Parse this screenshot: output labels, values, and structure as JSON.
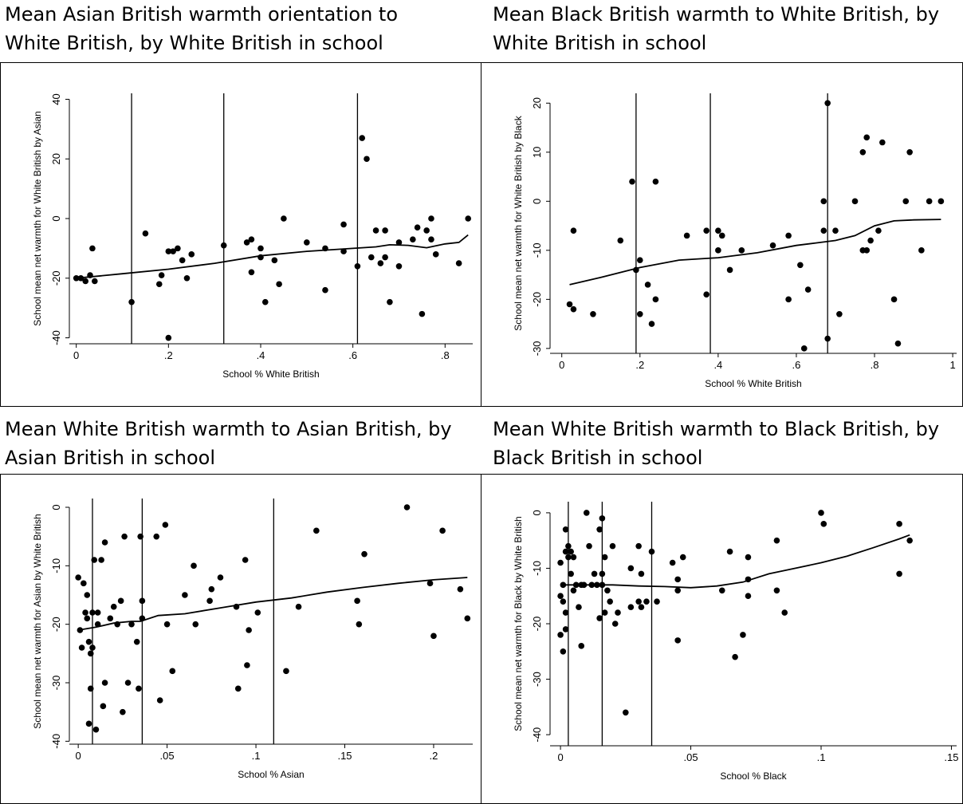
{
  "panels": [
    {
      "heading_line1": "Mean Asian British warmth orientation to",
      "heading_line2": "White British, by White British in school"
    },
    {
      "heading_line1": "Mean Black British warmth to White British, by",
      "heading_line2": "White British in school"
    },
    {
      "heading_line1": "Mean White British warmth to Asian British, by",
      "heading_line2": "Asian British in school"
    },
    {
      "heading_line1": "Mean White British warmth to Black British, by",
      "heading_line2": "Black British in school"
    }
  ],
  "chart_data": [
    {
      "type": "scatter",
      "title": "",
      "xlabel": "School % White British",
      "ylabel": "School mean net warmth for White British by Asian",
      "xlim": [
        -0.015,
        0.86
      ],
      "ylim": [
        -42,
        42
      ],
      "xticks": [
        0,
        0.2,
        0.4,
        0.6,
        0.8
      ],
      "xtick_labels": [
        "0",
        ".2",
        ".4",
        ".6",
        ".8"
      ],
      "yticks": [
        -40,
        -20,
        0,
        20,
        40
      ],
      "ytick_labels": [
        "-40",
        "-20",
        "0",
        "20",
        "40"
      ],
      "vlines": [
        0.12,
        0.32,
        0.61
      ],
      "grid": false,
      "points": [
        [
          0,
          -20
        ],
        [
          0.01,
          -20
        ],
        [
          0.02,
          -21
        ],
        [
          0.03,
          -19
        ],
        [
          0.035,
          -10
        ],
        [
          0.04,
          -21
        ],
        [
          0.12,
          -28
        ],
        [
          0.15,
          -5
        ],
        [
          0.18,
          -22
        ],
        [
          0.185,
          -19
        ],
        [
          0.2,
          -11
        ],
        [
          0.2,
          -40
        ],
        [
          0.21,
          -11
        ],
        [
          0.22,
          -10
        ],
        [
          0.23,
          -14
        ],
        [
          0.24,
          -20
        ],
        [
          0.25,
          -12
        ],
        [
          0.32,
          -9
        ],
        [
          0.37,
          -8
        ],
        [
          0.38,
          -7
        ],
        [
          0.38,
          -18
        ],
        [
          0.4,
          -10
        ],
        [
          0.4,
          -13
        ],
        [
          0.41,
          -28
        ],
        [
          0.43,
          -14
        ],
        [
          0.44,
          -22
        ],
        [
          0.45,
          0
        ],
        [
          0.5,
          -8
        ],
        [
          0.54,
          -10
        ],
        [
          0.54,
          -24
        ],
        [
          0.58,
          -2
        ],
        [
          0.58,
          -11
        ],
        [
          0.61,
          -16
        ],
        [
          0.62,
          27
        ],
        [
          0.63,
          20
        ],
        [
          0.64,
          -13
        ],
        [
          0.65,
          -4
        ],
        [
          0.66,
          -15
        ],
        [
          0.67,
          -4
        ],
        [
          0.67,
          -13
        ],
        [
          0.68,
          -28
        ],
        [
          0.7,
          -16
        ],
        [
          0.7,
          -8
        ],
        [
          0.73,
          -7
        ],
        [
          0.74,
          -3
        ],
        [
          0.75,
          -32
        ],
        [
          0.76,
          -4
        ],
        [
          0.77,
          0
        ],
        [
          0.77,
          -7
        ],
        [
          0.78,
          -12
        ],
        [
          0.83,
          -15
        ],
        [
          0.85,
          0
        ]
      ],
      "lowess": [
        [
          0,
          -20
        ],
        [
          0.1,
          -18.5
        ],
        [
          0.2,
          -17
        ],
        [
          0.3,
          -15
        ],
        [
          0.4,
          -12.5
        ],
        [
          0.5,
          -11
        ],
        [
          0.6,
          -10
        ],
        [
          0.65,
          -9.5
        ],
        [
          0.68,
          -8.8
        ],
        [
          0.72,
          -9
        ],
        [
          0.76,
          -9.8
        ],
        [
          0.8,
          -8.5
        ],
        [
          0.83,
          -8
        ],
        [
          0.85,
          -5.5
        ]
      ]
    },
    {
      "type": "scatter",
      "title": "",
      "xlabel": "School % White British",
      "ylabel": "School mean net warmth for White British by Black",
      "xlim": [
        -0.03,
        1.01
      ],
      "ylim": [
        -31,
        22
      ],
      "xticks": [
        0,
        0.2,
        0.4,
        0.6,
        0.8,
        1
      ],
      "xtick_labels": [
        "0",
        ".2",
        ".4",
        ".6",
        ".8",
        "1"
      ],
      "yticks": [
        -30,
        -20,
        -10,
        0,
        10,
        20
      ],
      "ytick_labels": [
        "-30",
        "-20",
        "-10",
        "0",
        "10",
        "20"
      ],
      "vlines": [
        0.19,
        0.38,
        0.68
      ],
      "grid": false,
      "points": [
        [
          0.02,
          -21
        ],
        [
          0.03,
          -6
        ],
        [
          0.03,
          -22
        ],
        [
          0.08,
          -23
        ],
        [
          0.15,
          -8
        ],
        [
          0.18,
          4
        ],
        [
          0.19,
          -14
        ],
        [
          0.2,
          -12
        ],
        [
          0.2,
          -23
        ],
        [
          0.22,
          -17
        ],
        [
          0.23,
          -25
        ],
        [
          0.24,
          4
        ],
        [
          0.24,
          -20
        ],
        [
          0.32,
          -7
        ],
        [
          0.37,
          -6
        ],
        [
          0.37,
          -19
        ],
        [
          0.4,
          -6
        ],
        [
          0.4,
          -10
        ],
        [
          0.41,
          -7
        ],
        [
          0.43,
          -14
        ],
        [
          0.46,
          -10
        ],
        [
          0.54,
          -9
        ],
        [
          0.58,
          -7
        ],
        [
          0.58,
          -20
        ],
        [
          0.61,
          -13
        ],
        [
          0.62,
          -30
        ],
        [
          0.63,
          -18
        ],
        [
          0.67,
          0
        ],
        [
          0.67,
          -6
        ],
        [
          0.68,
          20
        ],
        [
          0.68,
          -28
        ],
        [
          0.7,
          -6
        ],
        [
          0.71,
          -23
        ],
        [
          0.75,
          0
        ],
        [
          0.77,
          10
        ],
        [
          0.77,
          -10
        ],
        [
          0.78,
          13
        ],
        [
          0.78,
          -10
        ],
        [
          0.79,
          -8
        ],
        [
          0.81,
          -6
        ],
        [
          0.82,
          12
        ],
        [
          0.85,
          -20
        ],
        [
          0.86,
          -29
        ],
        [
          0.88,
          0
        ],
        [
          0.89,
          10
        ],
        [
          0.92,
          -10
        ],
        [
          0.94,
          0
        ],
        [
          0.97,
          0
        ]
      ],
      "lowess": [
        [
          0.02,
          -17
        ],
        [
          0.1,
          -15.5
        ],
        [
          0.2,
          -13.5
        ],
        [
          0.3,
          -12
        ],
        [
          0.4,
          -11.5
        ],
        [
          0.5,
          -10.5
        ],
        [
          0.6,
          -9
        ],
        [
          0.65,
          -8.5
        ],
        [
          0.7,
          -8
        ],
        [
          0.75,
          -7
        ],
        [
          0.8,
          -5
        ],
        [
          0.85,
          -4
        ],
        [
          0.9,
          -3.8
        ],
        [
          0.97,
          -3.7
        ]
      ]
    },
    {
      "type": "scatter",
      "title": "",
      "xlabel": "School % Asian",
      "ylabel": "School mean net warmth for Asian by White British",
      "xlim": [
        -0.005,
        0.222
      ],
      "ylim": [
        -40.5,
        1.5
      ],
      "xticks": [
        0,
        0.05,
        0.1,
        0.15,
        0.2
      ],
      "xtick_labels": [
        "0",
        ".05",
        ".1",
        ".15",
        ".2"
      ],
      "yticks": [
        -40,
        -30,
        -20,
        -10,
        0
      ],
      "ytick_labels": [
        "-40",
        "-30",
        "-20",
        "-10",
        "0"
      ],
      "vlines": [
        0.008,
        0.036,
        0.11
      ],
      "grid": false,
      "points": [
        [
          0,
          -12
        ],
        [
          0.001,
          -21
        ],
        [
          0.002,
          -24
        ],
        [
          0.003,
          -13
        ],
        [
          0.004,
          -18
        ],
        [
          0.005,
          -15
        ],
        [
          0.005,
          -19
        ],
        [
          0.006,
          -23
        ],
        [
          0.006,
          -37
        ],
        [
          0.007,
          -25
        ],
        [
          0.007,
          -31
        ],
        [
          0.008,
          -18
        ],
        [
          0.008,
          -24
        ],
        [
          0.009,
          -9
        ],
        [
          0.01,
          -38
        ],
        [
          0.011,
          -18
        ],
        [
          0.011,
          -20
        ],
        [
          0.013,
          -9
        ],
        [
          0.014,
          -34
        ],
        [
          0.015,
          -6
        ],
        [
          0.015,
          -30
        ],
        [
          0.018,
          -19
        ],
        [
          0.02,
          -17
        ],
        [
          0.022,
          -20
        ],
        [
          0.024,
          -16
        ],
        [
          0.025,
          -35
        ],
        [
          0.026,
          -5
        ],
        [
          0.028,
          -30
        ],
        [
          0.03,
          -20
        ],
        [
          0.033,
          -23
        ],
        [
          0.034,
          -31
        ],
        [
          0.035,
          -5
        ],
        [
          0.036,
          -16
        ],
        [
          0.036,
          -19
        ],
        [
          0.044,
          -5
        ],
        [
          0.046,
          -33
        ],
        [
          0.049,
          -3
        ],
        [
          0.05,
          -20
        ],
        [
          0.053,
          -28
        ],
        [
          0.06,
          -15
        ],
        [
          0.065,
          -10
        ],
        [
          0.066,
          -20
        ],
        [
          0.074,
          -16
        ],
        [
          0.075,
          -14
        ],
        [
          0.08,
          -12
        ],
        [
          0.089,
          -17
        ],
        [
          0.09,
          -31
        ],
        [
          0.094,
          -9
        ],
        [
          0.095,
          -27
        ],
        [
          0.096,
          -21
        ],
        [
          0.101,
          -18
        ],
        [
          0.117,
          -28
        ],
        [
          0.124,
          -17
        ],
        [
          0.134,
          -4
        ],
        [
          0.157,
          -16
        ],
        [
          0.158,
          -20
        ],
        [
          0.161,
          -8
        ],
        [
          0.185,
          0
        ],
        [
          0.198,
          -13
        ],
        [
          0.2,
          -22
        ],
        [
          0.205,
          -4
        ],
        [
          0.215,
          -14
        ],
        [
          0.219,
          -19
        ]
      ],
      "lowess": [
        [
          0,
          -21
        ],
        [
          0.01,
          -20.5
        ],
        [
          0.02,
          -19.8
        ],
        [
          0.03,
          -19.5
        ],
        [
          0.035,
          -19.5
        ],
        [
          0.045,
          -18.5
        ],
        [
          0.06,
          -18.2
        ],
        [
          0.08,
          -17.2
        ],
        [
          0.1,
          -16.2
        ],
        [
          0.12,
          -15.5
        ],
        [
          0.14,
          -14.5
        ],
        [
          0.16,
          -13.7
        ],
        [
          0.18,
          -13
        ],
        [
          0.2,
          -12.4
        ],
        [
          0.219,
          -12
        ]
      ]
    },
    {
      "type": "scatter",
      "title": "",
      "xlabel": "School % Black",
      "ylabel": "School mean net warmth for Black by White British",
      "xlim": [
        -0.004,
        0.152
      ],
      "ylim": [
        -42,
        2
      ],
      "xticks": [
        0,
        0.05,
        0.1,
        0.15
      ],
      "xtick_labels": [
        "0",
        ".05",
        ".1",
        ".15"
      ],
      "yticks": [
        -40,
        -30,
        -20,
        -10,
        0
      ],
      "ytick_labels": [
        "-40",
        "-30",
        "-20",
        "-10",
        "0"
      ],
      "vlines": [
        0.003,
        0.016,
        0.035
      ],
      "grid": false,
      "points": [
        [
          0,
          -9
        ],
        [
          0,
          -15
        ],
        [
          0,
          -22
        ],
        [
          0.001,
          -13
        ],
        [
          0.001,
          -16
        ],
        [
          0.001,
          -25
        ],
        [
          0.002,
          -3
        ],
        [
          0.002,
          -7
        ],
        [
          0.002,
          -18
        ],
        [
          0.002,
          -21
        ],
        [
          0.003,
          -6
        ],
        [
          0.003,
          -8
        ],
        [
          0.004,
          -7
        ],
        [
          0.004,
          -11
        ],
        [
          0.005,
          -8
        ],
        [
          0.005,
          -14
        ],
        [
          0.006,
          -13
        ],
        [
          0.007,
          -17
        ],
        [
          0.008,
          -13
        ],
        [
          0.008,
          -24
        ],
        [
          0.009,
          -13
        ],
        [
          0.01,
          0
        ],
        [
          0.011,
          -6
        ],
        [
          0.012,
          -13
        ],
        [
          0.013,
          -11
        ],
        [
          0.014,
          -13
        ],
        [
          0.015,
          -3
        ],
        [
          0.015,
          -19
        ],
        [
          0.016,
          -1
        ],
        [
          0.016,
          -11
        ],
        [
          0.016,
          -13
        ],
        [
          0.017,
          -8
        ],
        [
          0.017,
          -18
        ],
        [
          0.018,
          -14
        ],
        [
          0.019,
          -16
        ],
        [
          0.02,
          -6
        ],
        [
          0.021,
          -20
        ],
        [
          0.022,
          -18
        ],
        [
          0.025,
          -36
        ],
        [
          0.027,
          -10
        ],
        [
          0.027,
          -17
        ],
        [
          0.03,
          -6
        ],
        [
          0.03,
          -16
        ],
        [
          0.031,
          -11
        ],
        [
          0.031,
          -17
        ],
        [
          0.033,
          -16
        ],
        [
          0.035,
          -7
        ],
        [
          0.037,
          -16
        ],
        [
          0.043,
          -9
        ],
        [
          0.045,
          -12
        ],
        [
          0.045,
          -14
        ],
        [
          0.045,
          -23
        ],
        [
          0.047,
          -8
        ],
        [
          0.062,
          -14
        ],
        [
          0.065,
          -7
        ],
        [
          0.067,
          -26
        ],
        [
          0.07,
          -22
        ],
        [
          0.072,
          -8
        ],
        [
          0.072,
          -15
        ],
        [
          0.072,
          -12
        ],
        [
          0.083,
          -5
        ],
        [
          0.083,
          -14
        ],
        [
          0.086,
          -18
        ],
        [
          0.1,
          0
        ],
        [
          0.101,
          -2
        ],
        [
          0.13,
          -2
        ],
        [
          0.13,
          -11
        ],
        [
          0.134,
          -5
        ]
      ],
      "lowess": [
        [
          0,
          -13
        ],
        [
          0.01,
          -13
        ],
        [
          0.02,
          -13
        ],
        [
          0.03,
          -13.2
        ],
        [
          0.04,
          -13.3
        ],
        [
          0.05,
          -13.5
        ],
        [
          0.06,
          -13.2
        ],
        [
          0.07,
          -12.5
        ],
        [
          0.08,
          -11
        ],
        [
          0.09,
          -10
        ],
        [
          0.1,
          -9
        ],
        [
          0.11,
          -7.8
        ],
        [
          0.12,
          -6.3
        ],
        [
          0.13,
          -4.7
        ],
        [
          0.134,
          -4
        ]
      ]
    }
  ]
}
